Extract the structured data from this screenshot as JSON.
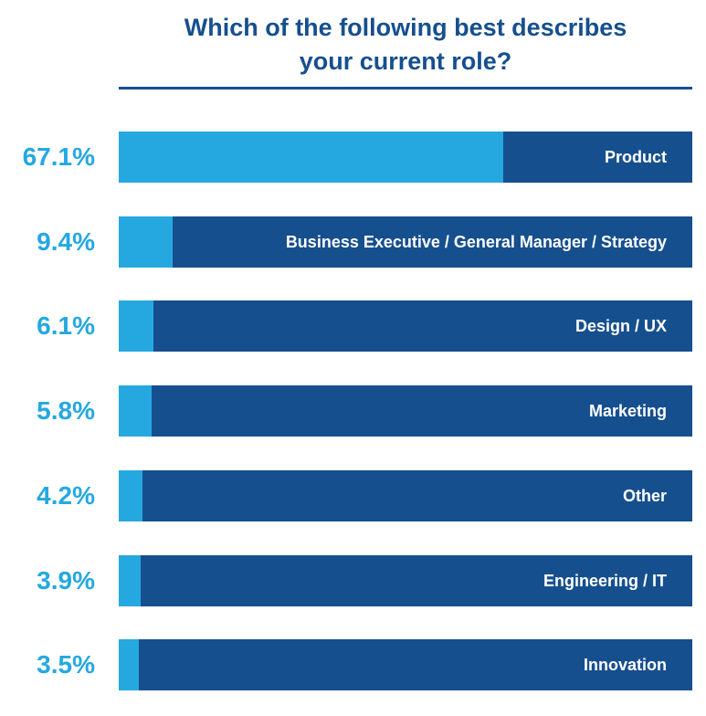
{
  "chart_data": {
    "type": "bar",
    "orientation": "horizontal",
    "title": "Which of the following best describes your current role?",
    "title_lines": [
      "Which of the following best describes",
      "your current role?"
    ],
    "categories": [
      "Product",
      "Business Executive / General Manager / Strategy",
      "Design / UX",
      "Marketing",
      "Other",
      "Engineering / IT",
      "Innovation"
    ],
    "values": [
      67.1,
      9.4,
      6.1,
      5.8,
      4.2,
      3.9,
      3.5
    ],
    "value_labels": [
      "67.1%",
      "9.4%",
      "6.1%",
      "5.8%",
      "4.2%",
      "3.9%",
      "3.5%"
    ],
    "xlim": [
      0,
      100
    ],
    "unit": "%",
    "grid": false,
    "legend": "none",
    "colors": {
      "fill": "#25a8e0",
      "track": "#164f8e",
      "title": "#164f8e",
      "value_label": "#25a8e0",
      "category_label": "#ffffff"
    }
  }
}
